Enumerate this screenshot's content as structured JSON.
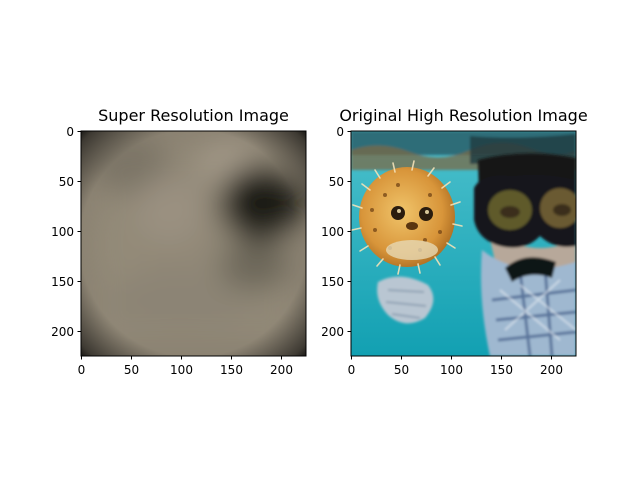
{
  "chart_data": [
    {
      "type": "image",
      "title": "Super Resolution Image",
      "xlabel": "",
      "ylabel": "",
      "xlim": [
        0,
        224
      ],
      "ylim": [
        224,
        0
      ],
      "x_ticks": [
        0,
        50,
        100,
        150,
        200
      ],
      "y_ticks": [
        0,
        50,
        100,
        150,
        200
      ],
      "image_content": "blurry brownish-gray gradient with a dark blob toward the upper right and darkened edges",
      "colors": {
        "base": "#8c8373",
        "dark_blob": "#1e1c18",
        "edge": "#121110"
      }
    },
    {
      "type": "image",
      "title": "Original High Resolution Image",
      "xlabel": "",
      "ylabel": "",
      "xlim": [
        0,
        224
      ],
      "ylim": [
        224,
        0
      ],
      "x_ticks": [
        0,
        50,
        100,
        150,
        200
      ],
      "y_ticks": [
        0,
        50,
        100,
        150,
        200
      ],
      "image_content": "underwater photo of a snorkeler in a dark mask beside an orange spiny pufferfish",
      "colors": {
        "water": "#21aab8",
        "fish": "#d89a3a",
        "mask": "#14171a",
        "wetsuit": "#9fb8d0"
      }
    }
  ]
}
